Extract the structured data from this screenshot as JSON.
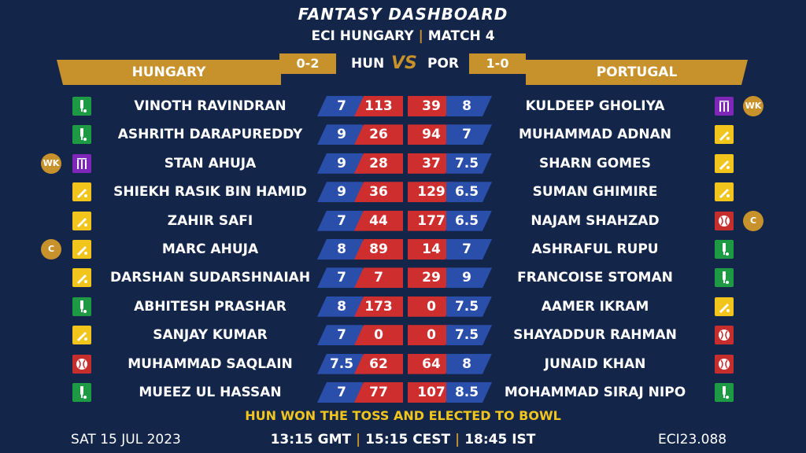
{
  "header": {
    "title": "FANTASY DASHBOARD",
    "subtitle_left": "ECI HUNGARY",
    "subtitle_sep": "|",
    "subtitle_right": "MATCH 4"
  },
  "home": {
    "name": "HUNGARY",
    "abbr": "HUN",
    "score": "0-2"
  },
  "away": {
    "name": "PORTUGAL",
    "abbr": "POR",
    "score": "1-0"
  },
  "vs": "VS",
  "colors": {
    "gold": "#c7912b",
    "navy": "#13264a",
    "blue": "#2a4faa",
    "red": "#cf2e2e",
    "yellow": "#f2c51d"
  },
  "players": [
    {
      "home_name": "VINOTH RAVINDRAN",
      "home_role": "bat",
      "home_badge": "",
      "home_credit": "7",
      "home_points": "113",
      "away_points": "39",
      "away_credit": "8",
      "away_name": "KULDEEP GHOLIYA",
      "away_role": "wk",
      "away_badge": "WK"
    },
    {
      "home_name": "ASHRITH DARAPUREDDY",
      "home_role": "bat",
      "home_badge": "",
      "home_credit": "9",
      "home_points": "26",
      "away_points": "94",
      "away_credit": "7",
      "away_name": "MUHAMMAD ADNAN",
      "away_role": "ar",
      "away_badge": ""
    },
    {
      "home_name": "STAN AHUJA",
      "home_role": "wk",
      "home_badge": "WK",
      "home_credit": "9",
      "home_points": "28",
      "away_points": "37",
      "away_credit": "7.5",
      "away_name": "SHARN GOMES",
      "away_role": "ar",
      "away_badge": ""
    },
    {
      "home_name": "SHIEKH RASIK BIN HAMID",
      "home_role": "ar",
      "home_badge": "",
      "home_credit": "9",
      "home_points": "36",
      "away_points": "129",
      "away_credit": "6.5",
      "away_name": "SUMAN GHIMIRE",
      "away_role": "ar",
      "away_badge": ""
    },
    {
      "home_name": "ZAHIR SAFI",
      "home_role": "ar",
      "home_badge": "",
      "home_credit": "7",
      "home_points": "44",
      "away_points": "177",
      "away_credit": "6.5",
      "away_name": "NAJAM SHAHZAD",
      "away_role": "bowl",
      "away_badge": "C"
    },
    {
      "home_name": "MARC AHUJA",
      "home_role": "ar",
      "home_badge": "C",
      "home_credit": "8",
      "home_points": "89",
      "away_points": "14",
      "away_credit": "7",
      "away_name": "ASHRAFUL RUPU",
      "away_role": "bat",
      "away_badge": ""
    },
    {
      "home_name": "DARSHAN SUDARSHNAIAH",
      "home_role": "ar",
      "home_badge": "",
      "home_credit": "7",
      "home_points": "7",
      "away_points": "29",
      "away_credit": "9",
      "away_name": "FRANCOISE STOMAN",
      "away_role": "bat",
      "away_badge": ""
    },
    {
      "home_name": "ABHITESH PRASHAR",
      "home_role": "bat",
      "home_badge": "",
      "home_credit": "8",
      "home_points": "173",
      "away_points": "0",
      "away_credit": "7.5",
      "away_name": "AAMER IKRAM",
      "away_role": "ar",
      "away_badge": ""
    },
    {
      "home_name": "SANJAY KUMAR",
      "home_role": "ar",
      "home_badge": "",
      "home_credit": "7",
      "home_points": "0",
      "away_points": "0",
      "away_credit": "7.5",
      "away_name": "SHAYADDUR RAHMAN",
      "away_role": "bowl",
      "away_badge": ""
    },
    {
      "home_name": "MUHAMMAD SAQLAIN",
      "home_role": "bowl",
      "home_badge": "",
      "home_credit": "7.5",
      "home_points": "62",
      "away_points": "64",
      "away_credit": "8",
      "away_name": "JUNAID KHAN",
      "away_role": "bowl",
      "away_badge": ""
    },
    {
      "home_name": "MUEEZ UL HASSAN",
      "home_role": "bat",
      "home_badge": "",
      "home_credit": "7",
      "home_points": "77",
      "away_points": "107",
      "away_credit": "8.5",
      "away_name": "MOHAMMAD SIRAJ NIPO",
      "away_role": "bat",
      "away_badge": ""
    }
  ],
  "toss": "HUN WON THE TOSS AND ELECTED TO BOWL",
  "footer": {
    "date": "SAT 15 JUL 2023",
    "time_gmt": "13:15 GMT",
    "time_cest": "15:15 CEST",
    "time_ist": "18:45 IST",
    "sep": "|",
    "code": "ECI23.088"
  }
}
